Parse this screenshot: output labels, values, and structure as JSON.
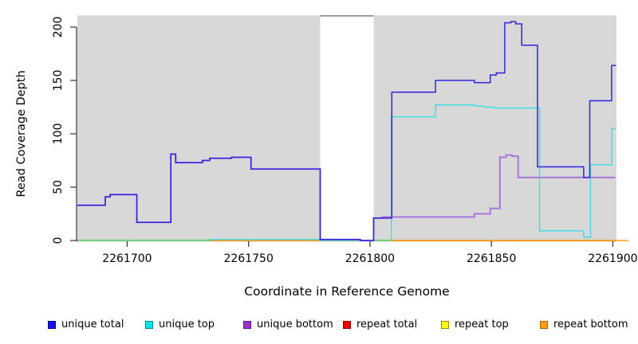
{
  "chart_data": {
    "type": "line",
    "title": "",
    "xlabel": "Coordinate in Reference Genome",
    "ylabel": "Read Coverage Depth",
    "xlim": [
      2261679.5,
      2261901.5
    ],
    "ylim": [
      0,
      211
    ],
    "x_ticks": [
      2261700,
      2261750,
      2261800,
      2261850,
      2261900
    ],
    "x_tick_labels": [
      "2261700",
      "2261750",
      "2261800",
      "2261850",
      "2261900"
    ],
    "y_ticks": [
      0,
      50,
      100,
      150,
      200
    ],
    "y_tick_labels": [
      "0",
      "50",
      "100",
      "150",
      "200"
    ],
    "grid": false,
    "legend_position": "bottom",
    "panel_color": "#d8d8d8",
    "uncovered_gap_x": [
      2261779.5,
      2261801.5
    ],
    "gap_top_line_color": "#8d8d8d",
    "axis_color": "#303030",
    "series": [
      {
        "name": "repeat total",
        "color": "#e60000",
        "points": [
          [
            2261679.5,
            0
          ],
          [
            2261901,
            0
          ]
        ]
      },
      {
        "name": "repeat top",
        "color": "#ffff00",
        "points": [
          [
            2261679.5,
            0
          ],
          [
            2261901,
            0
          ]
        ]
      },
      {
        "name": "repeat bottom",
        "color": "#ff9d1e",
        "points": [
          [
            2261679.5,
            0
          ],
          [
            2261906.5,
            0
          ]
        ]
      },
      {
        "name": "unique top",
        "color": "#45dde2",
        "points": [
          [
            2261679.5,
            0
          ],
          [
            2261734,
            1
          ],
          [
            2261779.5,
            0
          ],
          [
            2261808.8,
            116
          ],
          [
            2261827,
            127
          ],
          [
            2261843,
            126
          ],
          [
            2261847,
            125
          ],
          [
            2261851,
            124
          ],
          [
            2261869.8,
            9
          ],
          [
            2261888,
            3
          ],
          [
            2261890.8,
            71
          ],
          [
            2261899.6,
            105
          ],
          [
            2261901,
            105
          ]
        ]
      },
      {
        "name": "unique bottom",
        "color": "#a876dc",
        "points": [
          [
            2261679.5,
            33
          ],
          [
            2261691,
            41
          ],
          [
            2261693,
            43
          ],
          [
            2261704,
            17
          ],
          [
            2261718,
            81
          ],
          [
            2261720,
            73
          ],
          [
            2261731,
            75
          ],
          [
            2261734,
            77
          ],
          [
            2261743,
            78
          ],
          [
            2261751,
            67
          ],
          [
            2261779.5,
            1
          ],
          [
            2261796,
            0
          ],
          [
            2261801.5,
            21
          ],
          [
            2261805,
            22
          ],
          [
            2261843,
            25
          ],
          [
            2261849.5,
            30
          ],
          [
            2261853.5,
            78
          ],
          [
            2261856,
            80
          ],
          [
            2261858.5,
            79
          ],
          [
            2261861,
            59
          ],
          [
            2261901,
            59
          ]
        ]
      },
      {
        "name": "unique total",
        "color": "#2f25e0",
        "points": [
          [
            2261679.5,
            33
          ],
          [
            2261691,
            41
          ],
          [
            2261693,
            43
          ],
          [
            2261704,
            17
          ],
          [
            2261718,
            81
          ],
          [
            2261720,
            73
          ],
          [
            2261731,
            75
          ],
          [
            2261734,
            77
          ],
          [
            2261743,
            78
          ],
          [
            2261751,
            67
          ],
          [
            2261779.5,
            1
          ],
          [
            2261796,
            0
          ],
          [
            2261801.5,
            21
          ],
          [
            2261809,
            139
          ],
          [
            2261827,
            150
          ],
          [
            2261843,
            148
          ],
          [
            2261849.5,
            155
          ],
          [
            2261852,
            157
          ],
          [
            2261855.5,
            204
          ],
          [
            2261858,
            205
          ],
          [
            2261860,
            203
          ],
          [
            2261862.5,
            183
          ],
          [
            2261869,
            69
          ],
          [
            2261888,
            59
          ],
          [
            2261890.5,
            131
          ],
          [
            2261899.5,
            164
          ],
          [
            2261901.3,
            164
          ]
        ]
      }
    ],
    "zero_overlap_segments": [
      {
        "x": [
          2261679.5,
          2261734
        ],
        "value": 0,
        "color": "#7cd87c"
      },
      {
        "x": [
          2261801.5,
          2261808.8
        ],
        "value": 0,
        "color": "#7cd87c"
      }
    ]
  },
  "legend": {
    "items": [
      {
        "label": "unique total",
        "fill": "#1414e6",
        "border": "#000090"
      },
      {
        "label": "unique top",
        "fill": "#00e5ee",
        "border": "#00868b"
      },
      {
        "label": "unique bottom",
        "fill": "#9b30d0",
        "border": "#5e1a8e"
      },
      {
        "label": "repeat total",
        "fill": "#ee0000",
        "border": "#8b0000"
      },
      {
        "label": "repeat top",
        "fill": "#ffff00",
        "border": "#8b8b00"
      },
      {
        "label": "repeat bottom",
        "fill": "#ffa000",
        "border": "#b45f00"
      }
    ]
  }
}
